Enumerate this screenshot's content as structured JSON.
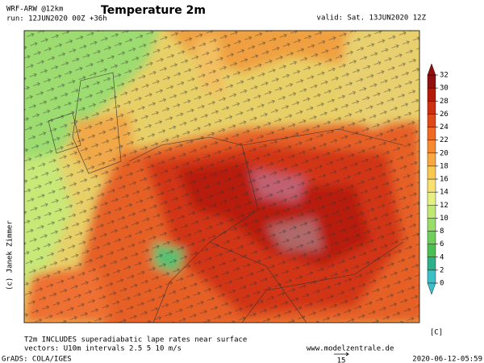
{
  "header": {
    "model": "WRF-ARW @12km",
    "run": "run: 12JUN2020 00Z +36h",
    "title": "Temperature 2m",
    "valid": "valid: Sat. 13JUN2020 12Z"
  },
  "credit": "(c) Janek Zimmer",
  "colorbar": {
    "unit": "[C]",
    "ticks": [
      0,
      2,
      4,
      6,
      8,
      10,
      12,
      14,
      16,
      18,
      20,
      22,
      24,
      26,
      28,
      30,
      32
    ],
    "colors": [
      "#3cc0c8",
      "#2fb08c",
      "#4cbf52",
      "#6fcf5c",
      "#98dc6a",
      "#c0e872",
      "#e6f080",
      "#f8e070",
      "#f8c850",
      "#f8a840",
      "#f68a30",
      "#ee6a22",
      "#de4a18",
      "#cc3010",
      "#b41a0a",
      "#901010"
    ]
  },
  "footer": {
    "note": "T2m INCLUDES superadiabatic lape rates near surface",
    "vectors": "vectors: U10m intervals 2.5 5 10 m/s",
    "website": "www.modelzentrale.de",
    "arrow_label": "15",
    "grads": "GrADS: COLA/IGES",
    "timestamp": "2020-06-12-05:59"
  }
}
